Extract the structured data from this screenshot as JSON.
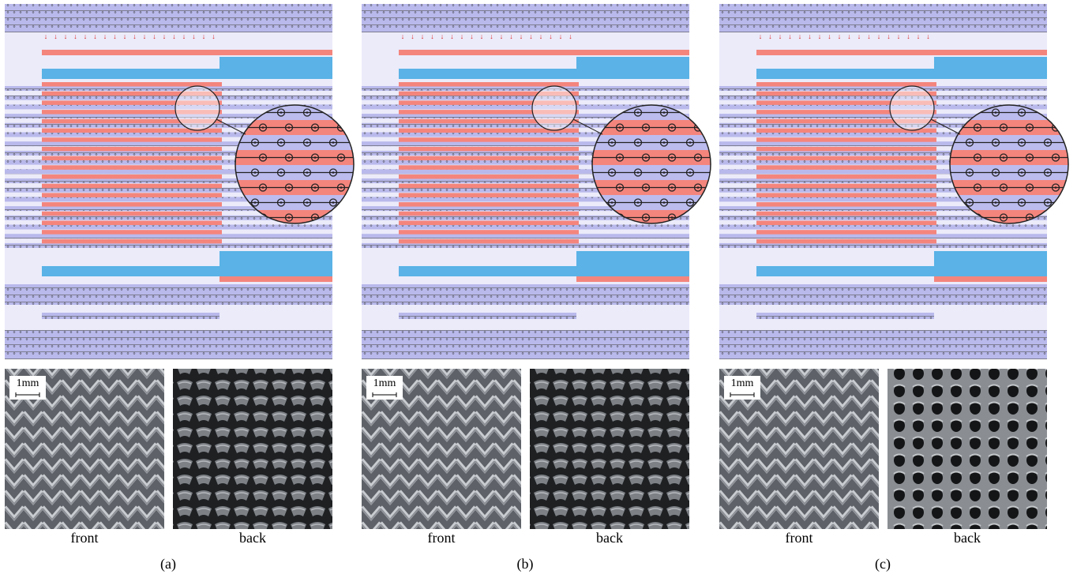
{
  "panels": [
    {
      "scale_label": "1mm",
      "front_label": "front",
      "back_label": "back",
      "caption": "(a)"
    },
    {
      "scale_label": "1mm",
      "front_label": "front",
      "back_label": "back",
      "caption": "(b)"
    },
    {
      "scale_label": "1mm",
      "front_label": "front",
      "back_label": "back",
      "caption": "(c)"
    }
  ]
}
